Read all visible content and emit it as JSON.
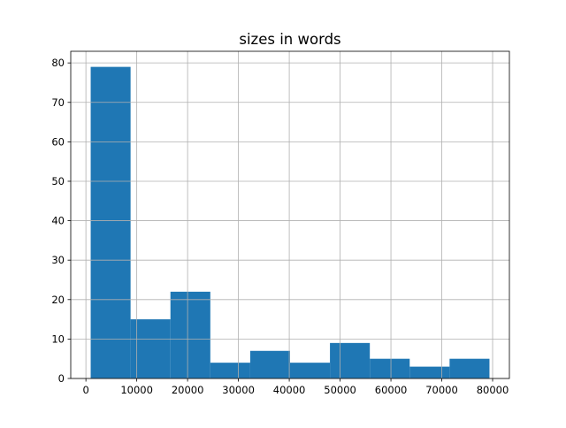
{
  "chart_data": {
    "type": "bar",
    "title": "sizes in words",
    "xlabel": "",
    "ylabel": "",
    "bin_edges_range": [
      940,
      79380
    ],
    "values": [
      79,
      15,
      22,
      4,
      7,
      4,
      9,
      5,
      3,
      5
    ],
    "xlim": [
      -2982,
      83302
    ],
    "ylim": [
      0,
      82.95
    ],
    "xticks": [
      0,
      10000,
      20000,
      30000,
      40000,
      50000,
      60000,
      70000,
      80000
    ],
    "yticks": [
      0,
      10,
      20,
      30,
      40,
      50,
      60,
      70,
      80
    ],
    "grid": true,
    "bar_color": "#1f77b4",
    "grid_color": "#b0b0b0"
  }
}
